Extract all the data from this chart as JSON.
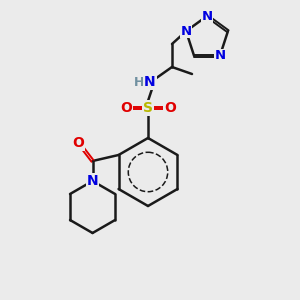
{
  "background_color": "#ebebeb",
  "bond_color": "#1a1a1a",
  "atom_colors": {
    "N": "#0000e0",
    "O": "#e00000",
    "S": "#b8b800",
    "H": "#7090a0",
    "C": "#1a1a1a"
  },
  "figsize": [
    3.0,
    3.0
  ],
  "dpi": 100
}
